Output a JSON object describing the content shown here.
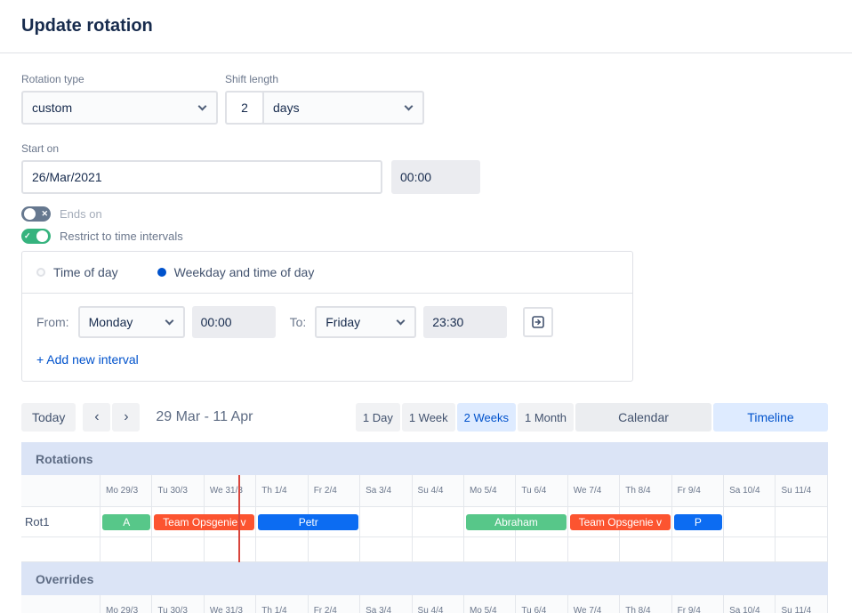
{
  "page": {
    "title": "Update rotation"
  },
  "form": {
    "rotation_type": {
      "label": "Rotation type",
      "value": "custom"
    },
    "shift_length": {
      "label": "Shift length",
      "value": "2",
      "unit": "days"
    },
    "start_on": {
      "label": "Start on",
      "date": "26/Mar/2021",
      "time": "00:00"
    },
    "ends_on": {
      "label": "Ends on"
    },
    "restrict": {
      "label": "Restrict to time intervals"
    },
    "interval": {
      "time_of_day": "Time of day",
      "weekday_time_of_day": "Weekday and time of day",
      "from_label": "From:",
      "from_day": "Monday",
      "from_time": "00:00",
      "to_label": "To:",
      "to_day": "Friday",
      "to_time": "23:30",
      "add_link": "+ Add new interval"
    }
  },
  "icons": {
    "check": "✓",
    "cross": "✕"
  },
  "toolbar": {
    "today": "Today",
    "prev": "‹",
    "next": "›",
    "range": "29 Mar - 11 Apr",
    "view_day": "1 Day",
    "view_week": "1 Week",
    "view_2weeks": "2 Weeks",
    "view_month": "1 Month",
    "active_view": "2 Weeks",
    "calendar": "Calendar",
    "timeline": "Timeline",
    "accent_color": "#0052cc",
    "active_bg": "#deebff"
  },
  "timeline": {
    "sections": {
      "rotations": "Rotations",
      "overrides": "Overrides"
    },
    "days": [
      "Mo 29/3",
      "Tu 30/3",
      "We 31/3",
      "Th 1/4",
      "Fr 2/4",
      "Sa 3/4",
      "Su 4/4",
      "Mo 5/4",
      "Tu 6/4",
      "We 7/4",
      "Th 8/4",
      "Fr 9/4",
      "Sa 10/4",
      "Su 11/4"
    ],
    "now_day": 2.65,
    "now_line_color": "#d8453c",
    "rows": [
      {
        "label": "Rot1",
        "bars": [
          {
            "label": "A",
            "color": "#57c789",
            "start": 0,
            "span": 1
          },
          {
            "label": "Team Opsgenie v",
            "color": "#fc5430",
            "start": 1,
            "span": 2
          },
          {
            "label": "Petr",
            "color": "#0c6cf2",
            "start": 3,
            "span": 2
          },
          {
            "label": "Abraham",
            "color": "#57c789",
            "start": 7,
            "span": 2
          },
          {
            "label": "Team Opsgenie v",
            "color": "#fc5430",
            "start": 9,
            "span": 2
          },
          {
            "label": "P",
            "color": "#0c6cf2",
            "start": 11,
            "span": 1
          }
        ]
      }
    ]
  }
}
